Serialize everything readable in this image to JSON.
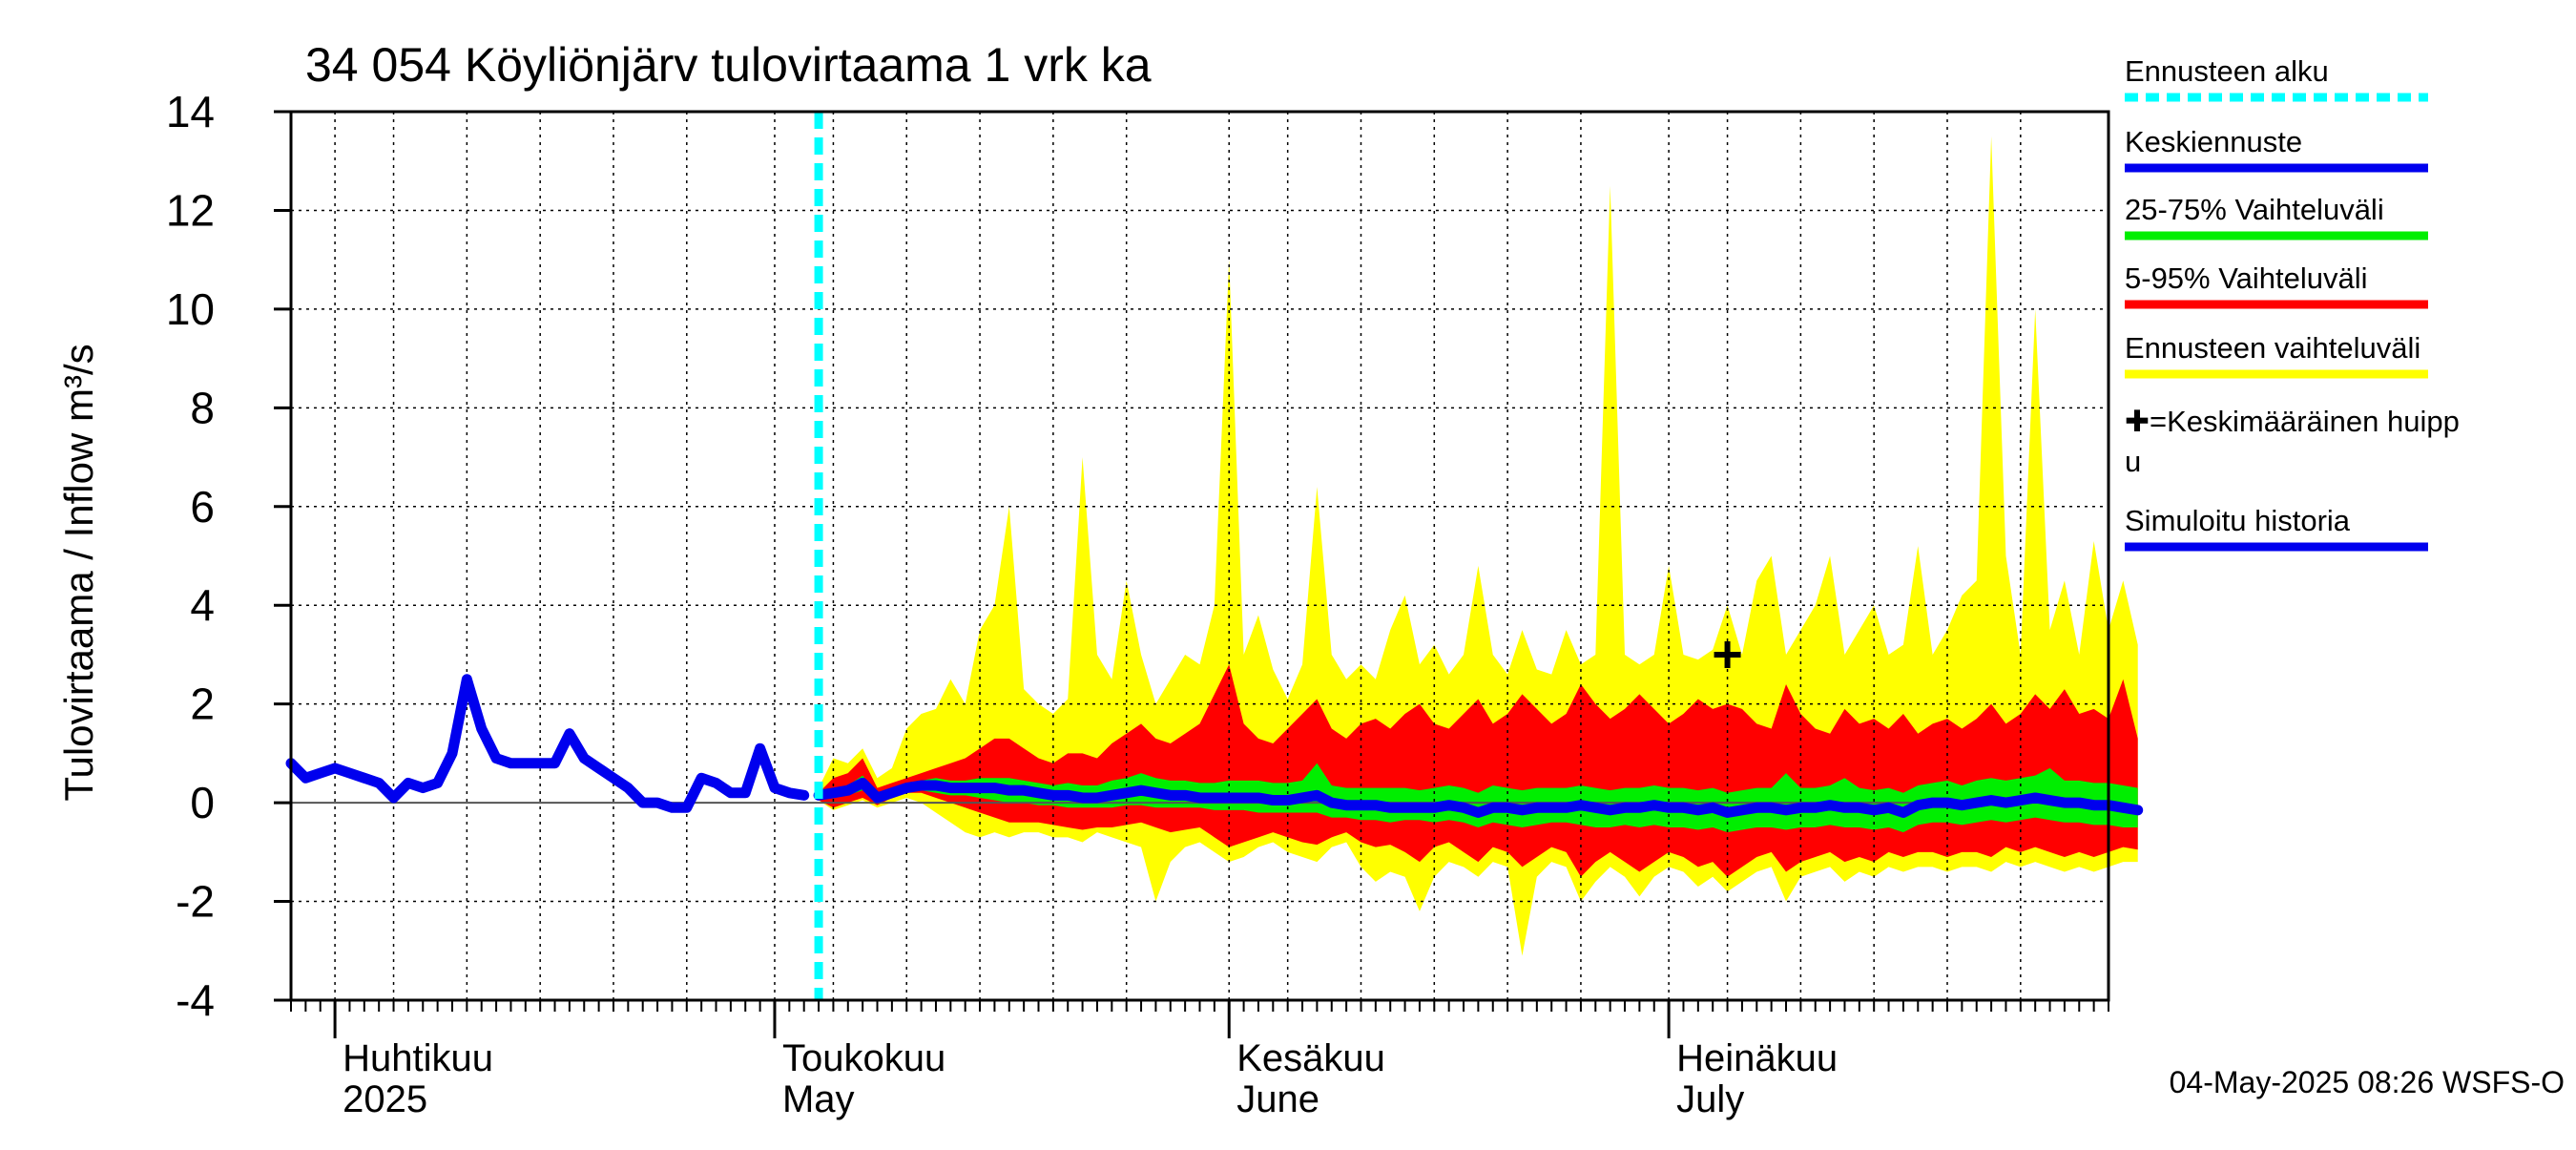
{
  "chart_data": {
    "type": "area",
    "title": "34 054 Köyliönjärv tulovirtaama 1 vrk ka",
    "ylabel": "Tulovirtaama / Inflow    m³/s",
    "ylim": [
      -4,
      14
    ],
    "yticks": [
      -4,
      -2,
      0,
      2,
      4,
      6,
      8,
      10,
      12,
      14
    ],
    "xlim": [
      "2025-03-29",
      "2025-07-31"
    ],
    "x_start": "2025-03-29",
    "x_step_days": 1,
    "grid": true,
    "legend_position": "right",
    "month_labels": [
      {
        "date": "2025-04-01",
        "fi": "Huhtikuu",
        "en": "2025"
      },
      {
        "date": "2025-05-01",
        "fi": "Toukokuu",
        "en": "May"
      },
      {
        "date": "2025-06-01",
        "fi": "Kesäkuu",
        "en": "June"
      },
      {
        "date": "2025-07-01",
        "fi": "Heinäkuu",
        "en": "July"
      }
    ],
    "forecast_start": "2025-05-04",
    "mean_peak": {
      "date": "2025-07-05",
      "value": 3.0
    },
    "history": {
      "name": "Simuloitu historia",
      "color": "#0000ee",
      "start": "2025-03-29",
      "values": [
        0.8,
        0.5,
        0.6,
        0.7,
        0.6,
        0.5,
        0.4,
        0.1,
        0.4,
        0.3,
        0.4,
        1.0,
        2.5,
        1.5,
        0.9,
        0.8,
        0.8,
        0.8,
        0.8,
        1.4,
        0.9,
        0.7,
        0.5,
        0.3,
        0.0,
        0.0,
        -0.1,
        -0.1,
        0.5,
        0.4,
        0.2,
        0.2,
        1.1,
        0.3,
        0.2,
        0.15
      ]
    },
    "forecast": {
      "start": "2025-05-04",
      "mean": {
        "name": "Keskiennuste",
        "color": "#0000ee",
        "values": [
          0.15,
          0.2,
          0.25,
          0.4,
          0.1,
          0.2,
          0.3,
          0.35,
          0.35,
          0.3,
          0.3,
          0.3,
          0.3,
          0.25,
          0.25,
          0.2,
          0.15,
          0.15,
          0.1,
          0.1,
          0.15,
          0.2,
          0.25,
          0.2,
          0.15,
          0.15,
          0.1,
          0.1,
          0.1,
          0.1,
          0.1,
          0.05,
          0.05,
          0.1,
          0.15,
          0.0,
          -0.05,
          -0.05,
          -0.05,
          -0.1,
          -0.1,
          -0.1,
          -0.1,
          -0.05,
          -0.1,
          -0.2,
          -0.1,
          -0.1,
          -0.15,
          -0.1,
          -0.1,
          -0.1,
          -0.05,
          -0.1,
          -0.15,
          -0.1,
          -0.1,
          -0.05,
          -0.1,
          -0.1,
          -0.15,
          -0.1,
          -0.2,
          -0.15,
          -0.1,
          -0.1,
          -0.15,
          -0.1,
          -0.1,
          -0.05,
          -0.1,
          -0.1,
          -0.15,
          -0.1,
          -0.2,
          -0.05,
          0.0,
          0.0,
          -0.05,
          0.0,
          0.05,
          0.0,
          0.05,
          0.1,
          0.05,
          0.0,
          0.0,
          -0.05,
          -0.05,
          -0.1,
          -0.15
        ]
      },
      "q25": [
        0.1,
        0.1,
        0.15,
        0.25,
        0.05,
        0.15,
        0.25,
        0.25,
        0.2,
        0.15,
        0.15,
        0.1,
        0.05,
        0.0,
        0.0,
        -0.05,
        -0.05,
        -0.1,
        -0.1,
        -0.1,
        -0.1,
        -0.05,
        -0.05,
        -0.1,
        -0.1,
        -0.1,
        -0.1,
        -0.15,
        -0.15,
        -0.15,
        -0.2,
        -0.2,
        -0.2,
        -0.2,
        -0.2,
        -0.3,
        -0.3,
        -0.35,
        -0.35,
        -0.4,
        -0.35,
        -0.35,
        -0.4,
        -0.35,
        -0.4,
        -0.5,
        -0.4,
        -0.45,
        -0.5,
        -0.45,
        -0.4,
        -0.4,
        -0.45,
        -0.5,
        -0.5,
        -0.45,
        -0.5,
        -0.45,
        -0.5,
        -0.5,
        -0.55,
        -0.5,
        -0.6,
        -0.55,
        -0.5,
        -0.5,
        -0.55,
        -0.5,
        -0.5,
        -0.45,
        -0.5,
        -0.5,
        -0.55,
        -0.5,
        -0.6,
        -0.45,
        -0.4,
        -0.4,
        -0.45,
        -0.4,
        -0.35,
        -0.4,
        -0.35,
        -0.3,
        -0.35,
        -0.4,
        -0.4,
        -0.45,
        -0.45,
        -0.5,
        -0.5
      ],
      "q75": [
        0.2,
        0.3,
        0.35,
        0.55,
        0.2,
        0.3,
        0.4,
        0.45,
        0.5,
        0.45,
        0.45,
        0.5,
        0.5,
        0.5,
        0.45,
        0.4,
        0.35,
        0.4,
        0.35,
        0.35,
        0.45,
        0.5,
        0.6,
        0.5,
        0.45,
        0.45,
        0.4,
        0.4,
        0.45,
        0.45,
        0.45,
        0.4,
        0.4,
        0.45,
        0.8,
        0.35,
        0.3,
        0.3,
        0.3,
        0.3,
        0.3,
        0.25,
        0.3,
        0.35,
        0.3,
        0.2,
        0.35,
        0.3,
        0.25,
        0.3,
        0.3,
        0.3,
        0.35,
        0.3,
        0.25,
        0.3,
        0.3,
        0.35,
        0.3,
        0.3,
        0.25,
        0.3,
        0.2,
        0.25,
        0.3,
        0.3,
        0.6,
        0.3,
        0.3,
        0.35,
        0.5,
        0.3,
        0.25,
        0.3,
        0.2,
        0.35,
        0.4,
        0.45,
        0.35,
        0.45,
        0.5,
        0.45,
        0.5,
        0.55,
        0.7,
        0.45,
        0.45,
        0.4,
        0.4,
        0.35,
        0.3
      ]
    },
    "band_5_95": {
      "name": "5-95% Vaihteluväli",
      "color": "#ff0000",
      "low": [
        0.05,
        -0.1,
        0.0,
        0.1,
        -0.05,
        0.1,
        0.2,
        0.2,
        0.1,
        0.0,
        -0.1,
        -0.2,
        -0.3,
        -0.4,
        -0.4,
        -0.4,
        -0.45,
        -0.5,
        -0.55,
        -0.5,
        -0.5,
        -0.45,
        -0.4,
        -0.5,
        -0.6,
        -0.55,
        -0.5,
        -0.7,
        -0.9,
        -0.8,
        -0.7,
        -0.6,
        -0.7,
        -0.8,
        -0.85,
        -0.7,
        -0.6,
        -0.8,
        -0.9,
        -0.85,
        -1.0,
        -1.2,
        -0.9,
        -0.8,
        -1.0,
        -1.2,
        -0.9,
        -1.0,
        -1.3,
        -1.1,
        -0.9,
        -1.0,
        -1.5,
        -1.2,
        -1.0,
        -1.2,
        -1.4,
        -1.2,
        -1.0,
        -1.1,
        -1.3,
        -1.2,
        -1.5,
        -1.3,
        -1.1,
        -1.0,
        -1.4,
        -1.2,
        -1.1,
        -1.0,
        -1.2,
        -1.1,
        -1.2,
        -1.0,
        -1.1,
        -1.0,
        -1.0,
        -1.1,
        -1.0,
        -1.0,
        -1.1,
        -0.9,
        -1.0,
        -0.9,
        -1.0,
        -1.1,
        -1.0,
        -1.1,
        -1.0,
        -0.9,
        -0.95
      ],
      "high": [
        0.2,
        0.5,
        0.6,
        0.9,
        0.3,
        0.4,
        0.5,
        0.6,
        0.7,
        0.8,
        0.9,
        1.1,
        1.3,
        1.3,
        1.1,
        0.9,
        0.8,
        1.0,
        1.0,
        0.9,
        1.2,
        1.4,
        1.6,
        1.3,
        1.2,
        1.4,
        1.6,
        2.2,
        2.8,
        1.6,
        1.3,
        1.2,
        1.5,
        1.8,
        2.1,
        1.5,
        1.3,
        1.6,
        1.7,
        1.5,
        1.8,
        2.0,
        1.6,
        1.5,
        1.8,
        2.1,
        1.6,
        1.8,
        2.2,
        1.9,
        1.6,
        1.8,
        2.4,
        2.0,
        1.7,
        1.9,
        2.2,
        1.9,
        1.6,
        1.8,
        2.1,
        1.9,
        2.0,
        1.9,
        1.6,
        1.5,
        2.4,
        1.8,
        1.5,
        1.4,
        1.9,
        1.6,
        1.7,
        1.5,
        1.8,
        1.4,
        1.6,
        1.7,
        1.5,
        1.7,
        2.0,
        1.6,
        1.8,
        2.2,
        1.9,
        2.3,
        1.8,
        1.9,
        1.7,
        2.5,
        1.3
      ]
    },
    "band_full": {
      "name": "Ennusteen vaihteluväli",
      "color": "#ffff00",
      "low": [
        0.05,
        -0.15,
        -0.05,
        0.05,
        -0.1,
        0.0,
        0.1,
        0.0,
        -0.2,
        -0.4,
        -0.6,
        -0.7,
        -0.6,
        -0.7,
        -0.6,
        -0.6,
        -0.7,
        -0.7,
        -0.8,
        -0.6,
        -0.7,
        -0.8,
        -0.9,
        -2.0,
        -1.2,
        -0.9,
        -0.8,
        -1.0,
        -1.2,
        -1.1,
        -0.9,
        -0.8,
        -1.0,
        -1.1,
        -1.2,
        -0.9,
        -0.8,
        -1.3,
        -1.6,
        -1.4,
        -1.5,
        -2.2,
        -1.5,
        -1.2,
        -1.3,
        -1.5,
        -1.2,
        -1.3,
        -3.1,
        -1.5,
        -1.2,
        -1.3,
        -2.0,
        -1.6,
        -1.3,
        -1.5,
        -1.9,
        -1.5,
        -1.3,
        -1.4,
        -1.7,
        -1.5,
        -1.8,
        -1.6,
        -1.4,
        -1.3,
        -2.0,
        -1.5,
        -1.4,
        -1.3,
        -1.6,
        -1.4,
        -1.5,
        -1.3,
        -1.4,
        -1.3,
        -1.3,
        -1.4,
        -1.3,
        -1.3,
        -1.4,
        -1.2,
        -1.3,
        -1.2,
        -1.3,
        -1.4,
        -1.3,
        -1.4,
        -1.3,
        -1.2,
        -1.2
      ],
      "high": [
        0.3,
        0.9,
        0.8,
        1.1,
        0.5,
        0.7,
        1.5,
        1.8,
        1.9,
        2.5,
        2.0,
        3.5,
        4.0,
        6.0,
        2.3,
        2.0,
        1.8,
        2.1,
        7.0,
        3.0,
        2.5,
        4.5,
        3.0,
        2.0,
        2.5,
        3.0,
        2.8,
        4.0,
        11.0,
        3.0,
        3.8,
        2.7,
        2.1,
        2.8,
        6.4,
        3.0,
        2.5,
        2.8,
        2.5,
        3.5,
        4.2,
        2.8,
        3.2,
        2.6,
        3.0,
        4.8,
        3.0,
        2.6,
        3.5,
        2.7,
        2.6,
        3.5,
        2.8,
        3.0,
        12.5,
        3.0,
        2.8,
        3.0,
        4.8,
        3.0,
        2.9,
        3.1,
        4.0,
        3.0,
        4.5,
        5.0,
        3.0,
        3.5,
        4.0,
        5.0,
        3.0,
        3.5,
        4.0,
        3.0,
        3.2,
        5.2,
        3.0,
        3.5,
        4.2,
        4.5,
        13.5,
        5.0,
        3.0,
        10.0,
        3.5,
        4.5,
        3.0,
        5.3,
        3.5,
        4.5,
        3.2
      ]
    },
    "legend": [
      {
        "label": "Ennusteen alku",
        "color": "#00ffff",
        "style": "dashed"
      },
      {
        "label": "Keskiennuste",
        "color": "#0000ee",
        "style": "solid"
      },
      {
        "label": "25-75% Vaihteluväli",
        "color": "#00ee00",
        "style": "solid"
      },
      {
        "label": "5-95% Vaihteluväli",
        "color": "#ff0000",
        "style": "solid"
      },
      {
        "label": "Ennusteen vaihteluväli",
        "color": "#ffff00",
        "style": "solid"
      },
      {
        "label": "✚=Keskimääräinen huipp u",
        "color": "#000000",
        "style": "none"
      },
      {
        "label": "Simuloitu historia",
        "color": "#0000ee",
        "style": "solid"
      }
    ],
    "legend_lines": [
      [
        "Ennusteen alku"
      ],
      [
        "Keskiennuste"
      ],
      [
        "25-75% Vaihteluväli"
      ],
      [
        "5-95% Vaihteluväli"
      ],
      [
        "Ennusteen vaihteluväli"
      ],
      [
        "✚=Keskimääräinen huipp",
        "u"
      ],
      [
        "Simuloitu historia"
      ]
    ],
    "colors": {
      "band_25_75": "#00ee00",
      "band_5_95": "#ff0000",
      "band_full": "#ffff00",
      "mean": "#0000ee",
      "history": "#0000ee",
      "forecast_start": "#00ffff",
      "grid": "#000000"
    },
    "footer": "04-May-2025 08:26 WSFS-O"
  }
}
